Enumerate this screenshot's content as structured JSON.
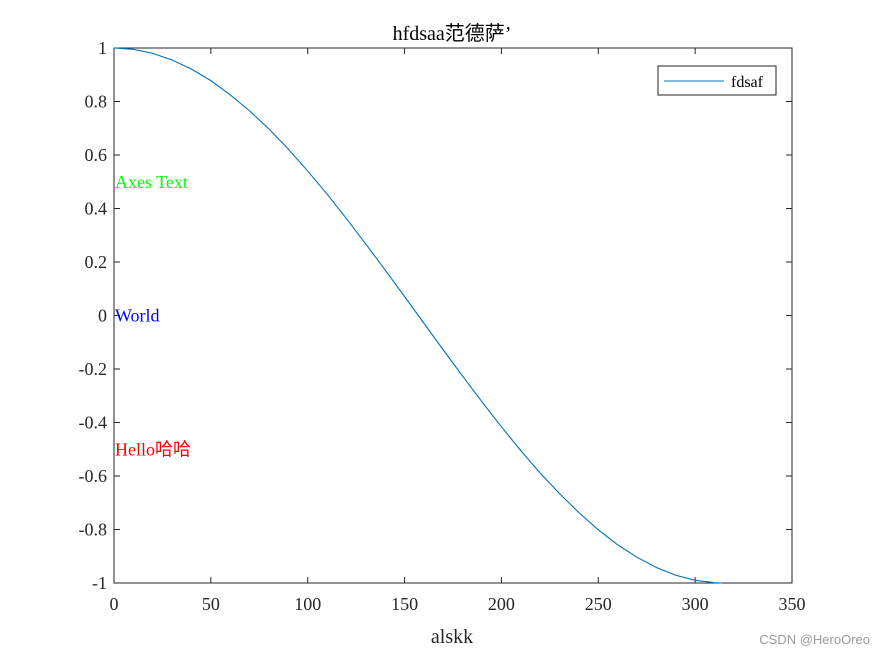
{
  "chart_data": {
    "type": "line",
    "title": "hfdsaa范德萨’",
    "xlabel": "alskk",
    "ylabel": "",
    "xlim": [
      0,
      350
    ],
    "ylim": [
      -1,
      1
    ],
    "xticks": [
      "0",
      "50",
      "100",
      "150",
      "200",
      "250",
      "300",
      "350"
    ],
    "yticks": [
      "-1",
      "-0.8",
      "-0.6",
      "-0.4",
      "-0.2",
      "0",
      "0.2",
      "0.4",
      "0.6",
      "0.8",
      "1"
    ],
    "grid": false,
    "legend_position": "top-right",
    "series": [
      {
        "name": "fdsaf",
        "color": "#0072BD",
        "x": [
          0,
          10,
          20,
          30,
          40,
          50,
          60,
          70,
          80,
          90,
          100,
          110,
          120,
          130,
          140,
          150,
          160,
          170,
          180,
          190,
          200,
          210,
          220,
          230,
          240,
          250,
          260,
          270,
          280,
          290,
          300,
          310,
          314
        ],
        "y": [
          1.0,
          0.995,
          0.98,
          0.955,
          0.921,
          0.878,
          0.825,
          0.765,
          0.697,
          0.622,
          0.54,
          0.454,
          0.362,
          0.267,
          0.17,
          0.071,
          -0.029,
          -0.129,
          -0.227,
          -0.323,
          -0.416,
          -0.505,
          -0.589,
          -0.666,
          -0.737,
          -0.801,
          -0.857,
          -0.904,
          -0.942,
          -0.971,
          -0.99,
          -0.999,
          -1.0
        ]
      }
    ],
    "annotations": [
      {
        "text": "Axes Text",
        "x": 0,
        "y": 0.5,
        "color": "#00FF00"
      },
      {
        "text": "World",
        "x": 0,
        "y": 0,
        "color": "#0000FF"
      },
      {
        "text": "Hello哈哈",
        "x": 0,
        "y": -0.5,
        "color": "#FF0000"
      }
    ]
  },
  "watermark": "CSDN @HeroOreo"
}
